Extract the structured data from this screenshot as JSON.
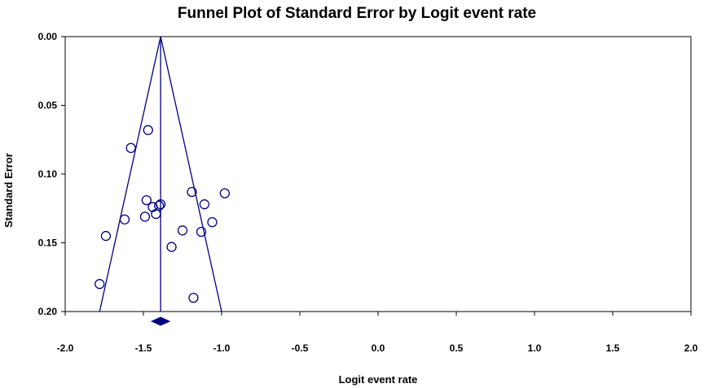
{
  "chart_data": {
    "type": "scatter",
    "title": "Funnel Plot of Standard Error by Logit event rate",
    "xlabel": "Logit event rate",
    "ylabel": "Standard Error",
    "xlim": [
      -2.0,
      2.0
    ],
    "ylim": [
      0.0,
      0.2
    ],
    "y_inverted": true,
    "x_ticks": [
      "-2.0",
      "-1.5",
      "-1.0",
      "-0.5",
      "0.0",
      "0.5",
      "1.0",
      "1.5",
      "2.0"
    ],
    "y_ticks": [
      "0.00",
      "0.05",
      "0.10",
      "0.15",
      "0.20"
    ],
    "grid": false,
    "pooled_estimate": -1.39,
    "funnel": {
      "apex": [
        -1.39,
        0.0
      ],
      "left_base": [
        -1.78,
        0.2
      ],
      "right_base": [
        -1.0,
        0.2
      ]
    },
    "points": [
      {
        "x": -1.47,
        "y": 0.068
      },
      {
        "x": -1.58,
        "y": 0.081
      },
      {
        "x": -1.48,
        "y": 0.119
      },
      {
        "x": -1.44,
        "y": 0.124
      },
      {
        "x": -1.4,
        "y": 0.123
      },
      {
        "x": -1.39,
        "y": 0.122
      },
      {
        "x": -1.42,
        "y": 0.129
      },
      {
        "x": -1.49,
        "y": 0.131
      },
      {
        "x": -1.62,
        "y": 0.133
      },
      {
        "x": -1.74,
        "y": 0.145
      },
      {
        "x": -1.19,
        "y": 0.113
      },
      {
        "x": -1.11,
        "y": 0.122
      },
      {
        "x": -0.98,
        "y": 0.114
      },
      {
        "x": -1.06,
        "y": 0.135
      },
      {
        "x": -1.25,
        "y": 0.141
      },
      {
        "x": -1.13,
        "y": 0.142
      },
      {
        "x": -1.32,
        "y": 0.153
      },
      {
        "x": -1.78,
        "y": 0.18
      },
      {
        "x": -1.18,
        "y": 0.19
      }
    ],
    "colors": {
      "series": "#000080",
      "axis": "#000000",
      "background": "#ffffff"
    }
  }
}
